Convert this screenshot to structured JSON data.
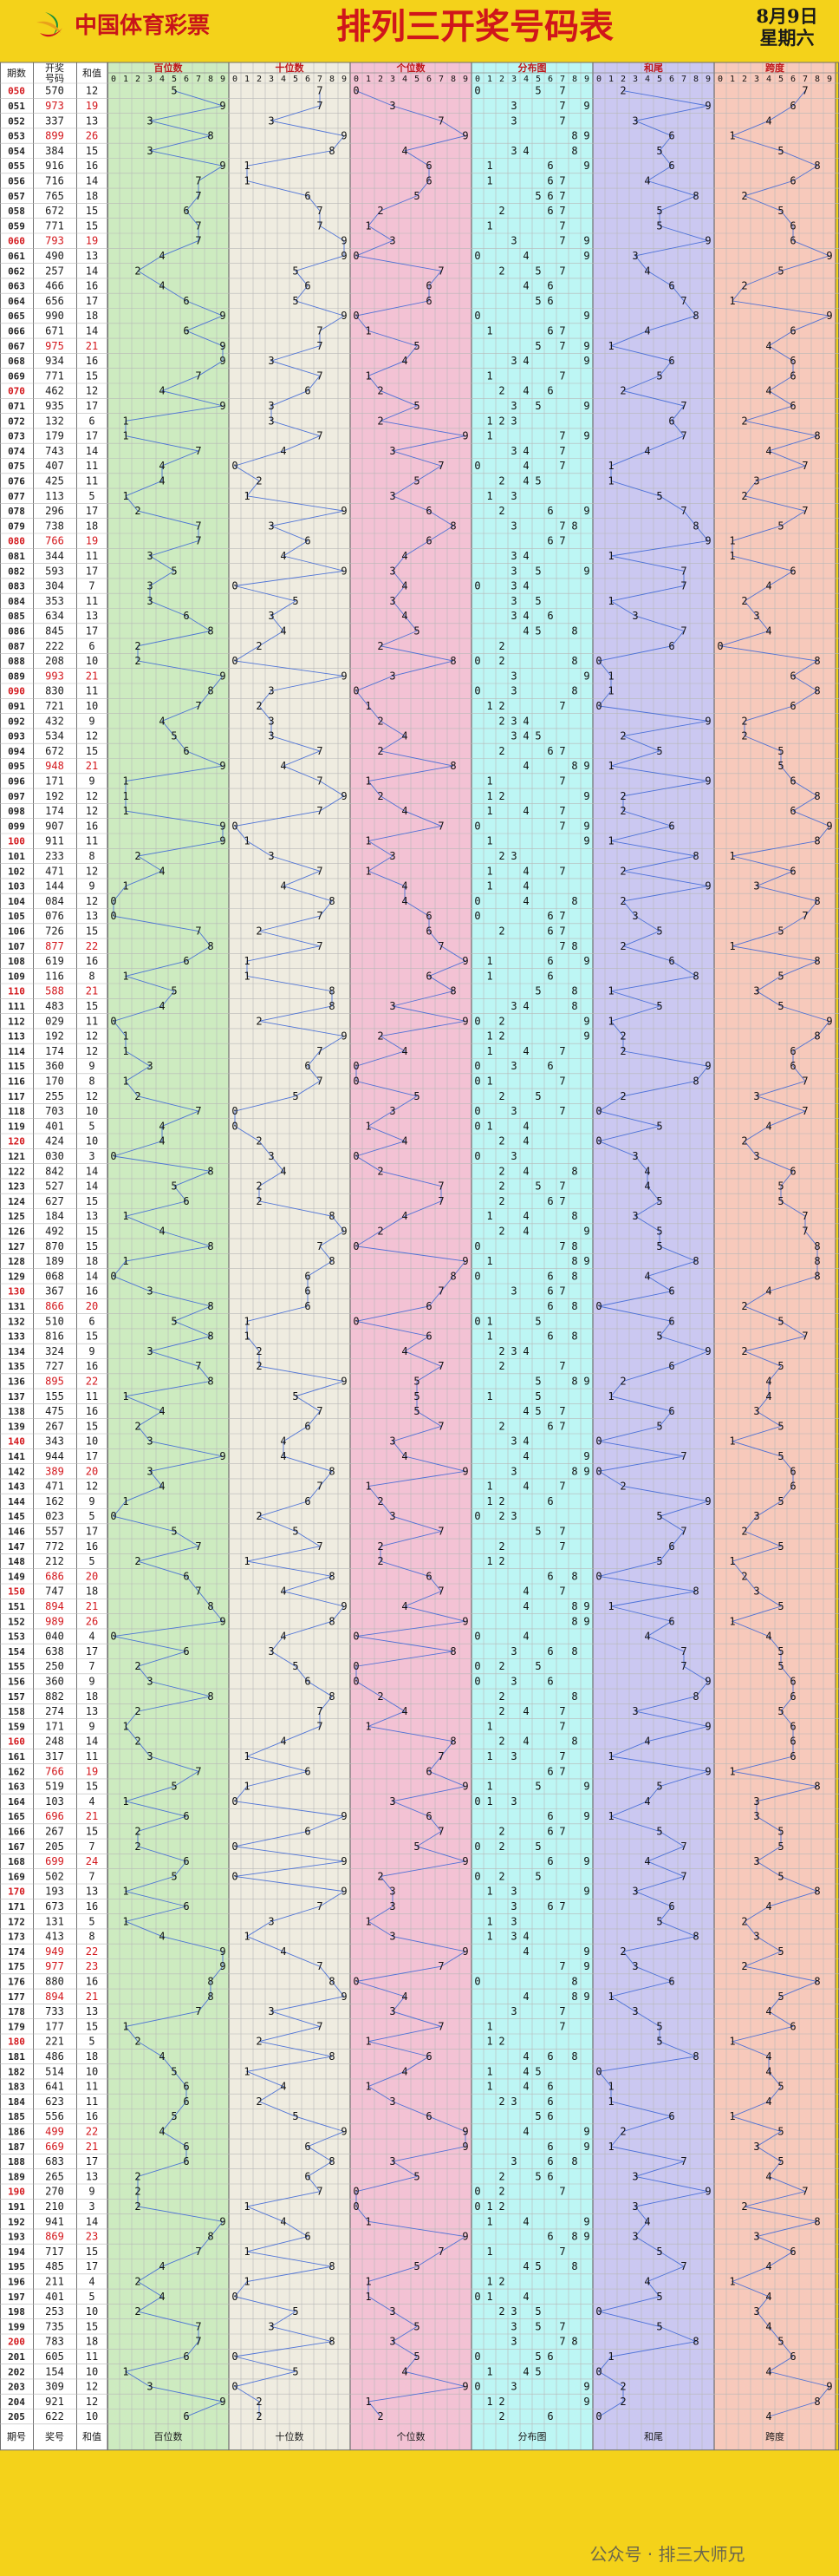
{
  "header": {
    "brand": "中国体育彩票",
    "title": "排列三开奖号码表",
    "date": "8月9日",
    "weekday": "星期六",
    "watermark": "公众号 · 排三大师兄"
  },
  "columns": {
    "issue": "期数",
    "number": "开奖号码",
    "sum": "和值",
    "sections": [
      "百位数",
      "十位数",
      "个位数",
      "分布图",
      "和尾",
      "跨度"
    ],
    "footer_issue": "期号",
    "footer_number": "奖号",
    "footer_sum": "和值",
    "digits": [
      "0",
      "1",
      "2",
      "3",
      "4",
      "5",
      "6",
      "7",
      "8",
      "9"
    ]
  },
  "chart_data": {
    "type": "table",
    "first_issue": 50,
    "draws": [
      "570",
      "973",
      "337",
      "899",
      "384",
      "916",
      "716",
      "765",
      "672",
      "771",
      "793",
      "490",
      "257",
      "466",
      "656",
      "990",
      "671",
      "975",
      "934",
      "771",
      "462",
      "935",
      "132",
      "179",
      "743",
      "407",
      "425",
      "113",
      "296",
      "738",
      "766",
      "344",
      "593",
      "304",
      "353",
      "634",
      "845",
      "222",
      "208",
      "993",
      "830",
      "721",
      "432",
      "534",
      "672",
      "948",
      "171",
      "192",
      "174",
      "907",
      "911",
      "233",
      "471",
      "144",
      "084",
      "076",
      "726",
      "877",
      "619",
      "116",
      "588",
      "483",
      "029",
      "192",
      "174",
      "360",
      "170",
      "255",
      "703",
      "401",
      "424",
      "030",
      "842",
      "527",
      "627",
      "184",
      "492",
      "870",
      "189",
      "068",
      "367",
      "866",
      "510",
      "816",
      "324",
      "727",
      "895",
      "155",
      "475",
      "267",
      "343",
      "944",
      "389",
      "471",
      "162",
      "023",
      "557",
      "772",
      "212",
      "686",
      "747",
      "894",
      "989",
      "040",
      "638",
      "250",
      "360",
      "882",
      "274",
      "171",
      "248",
      "317",
      "766",
      "519",
      "103",
      "696",
      "267",
      "205",
      "699",
      "502",
      "193",
      "673",
      "131",
      "413",
      "949",
      "977",
      "880",
      "894",
      "733",
      "177",
      "221",
      "486",
      "514",
      "641",
      "623",
      "556",
      "499",
      "669",
      "683",
      "265",
      "270",
      "210",
      "941",
      "869",
      "717",
      "485",
      "211",
      "401",
      "253",
      "735",
      "783",
      "605",
      "154",
      "309",
      "921",
      "622"
    ]
  },
  "colors": {
    "background": "#f4d21a",
    "baihu": "#cdebc0",
    "shiwei": "#efece0",
    "gewei": "#f3c2d4",
    "fenbu": "#bdf6f4",
    "hewei": "#cbc8f1",
    "kuadu": "#f7c9bb",
    "line": "#3f68d6",
    "issue_red": "#d3161b",
    "issue_blue": "#1d55d4",
    "sum_red": "#d3161b"
  },
  "icons": [
    "lottery-logo-icon"
  ]
}
